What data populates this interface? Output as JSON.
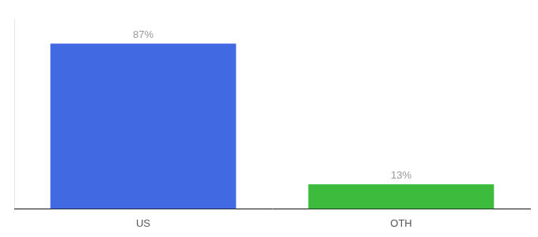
{
  "chart_data": {
    "type": "bar",
    "categories": [
      "US",
      "OTH"
    ],
    "values": [
      87,
      13
    ],
    "value_labels": [
      "87%",
      "13%"
    ],
    "colors": [
      "#4169e1",
      "#3dbb3d"
    ],
    "ylim": [
      0,
      100
    ],
    "data_labels": true,
    "tick_labels": "x",
    "grid": false
  }
}
